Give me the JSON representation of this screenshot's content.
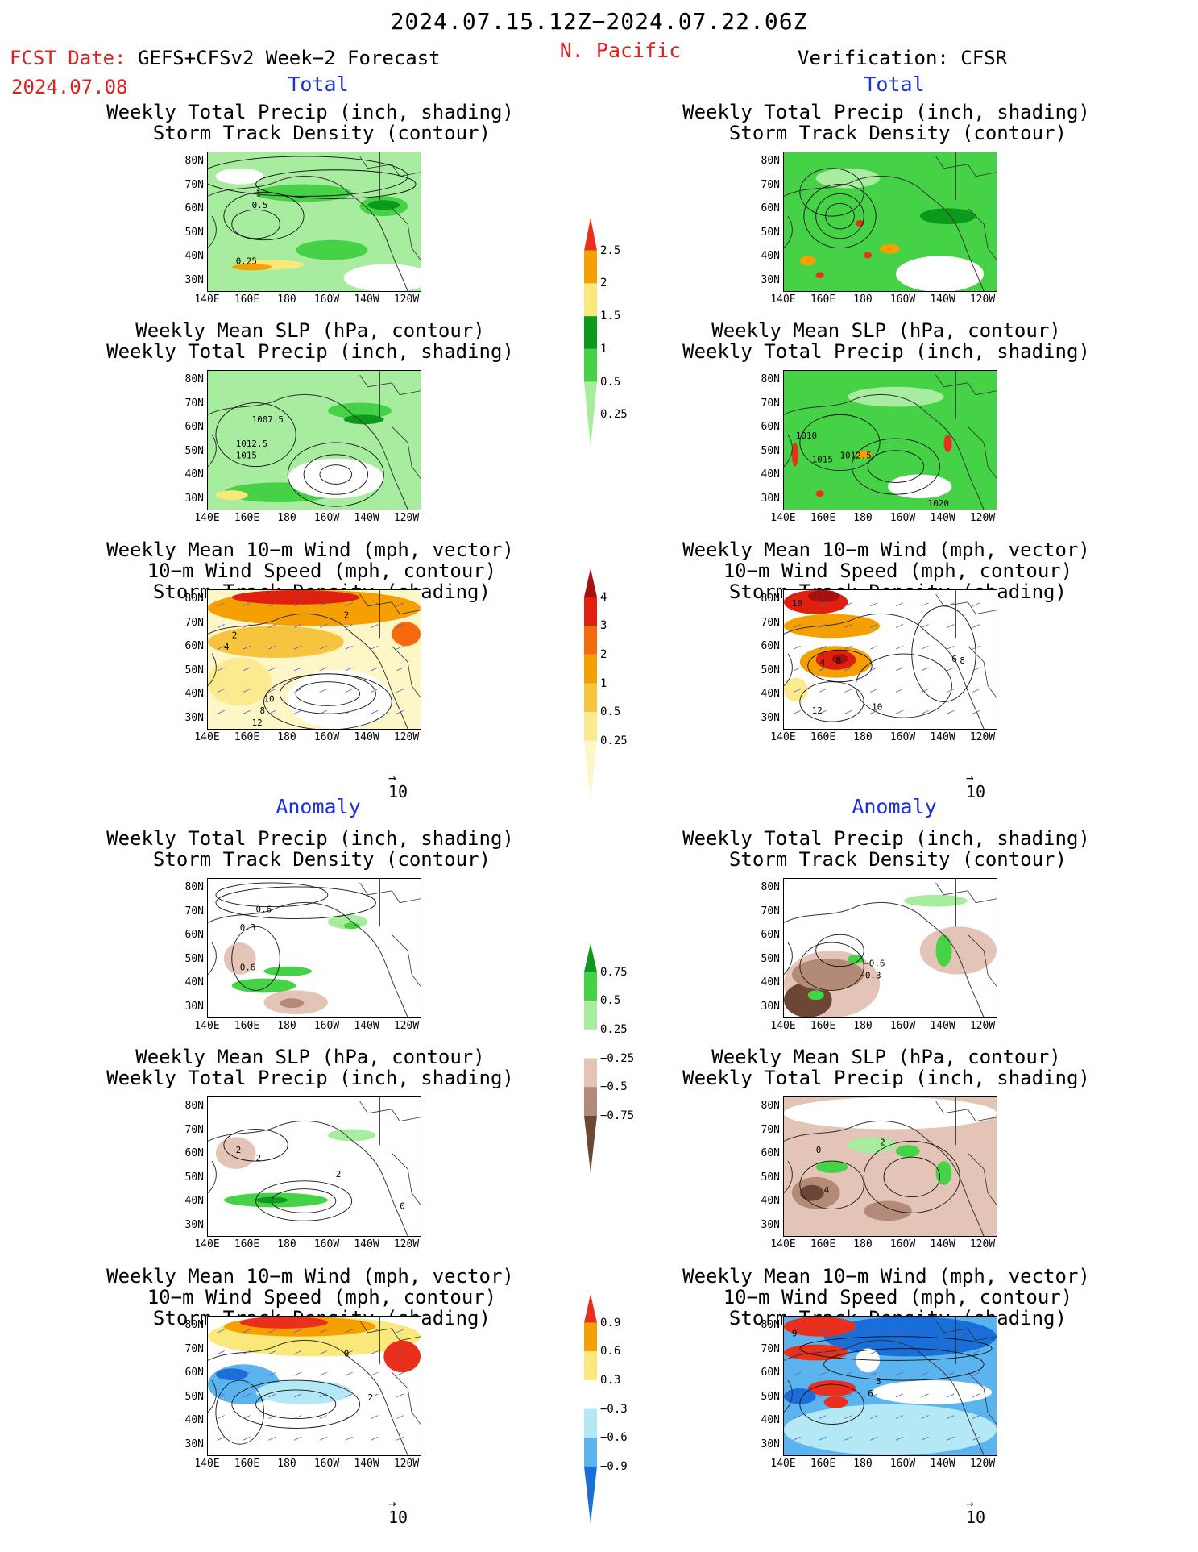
{
  "header": {
    "valid_period": "2024.07.15.12Z−2024.07.22.06Z",
    "region": "N. Pacific",
    "fcst_prefix": "FCST Date: ",
    "fcst_model": "GEFS+CFSv2 Week−2 Forecast",
    "fcst_date": "2024.07.08",
    "verification": "Verification: CFSR"
  },
  "sections": {
    "total": "Total",
    "anomaly": "Anomaly"
  },
  "captions": {
    "precip_storm": "Weekly Total Precip (inch, shading)\n  Storm Track Density (contour)",
    "slp_precip": "Weekly Mean SLP (hPa, contour)\nWeekly Total Precip (inch, shading)",
    "wind_storm": "Weekly Mean 10−m Wind (mph, vector)\n  10−m Wind Speed (mph, contour)\n  Storm Track Density (shading)"
  },
  "axes": {
    "lat": [
      "80N",
      "70N",
      "60N",
      "50N",
      "40N",
      "30N"
    ],
    "lon": [
      "140E",
      "160E",
      "180",
      "160W",
      "140W",
      "120W"
    ]
  },
  "vector_ref": "10",
  "colorbars": {
    "precip_total": {
      "labels": [
        "2.5",
        "2",
        "1.5",
        "1",
        "0.5",
        "0.25"
      ],
      "colors": [
        "#e8301c",
        "#f5a000",
        "#fbe87a",
        "#0c9a1c",
        "#46d246",
        "#a8eca0"
      ]
    },
    "storm_total": {
      "labels": [
        "4",
        "3",
        "2",
        "1",
        "0.5",
        "0.25"
      ],
      "colors": [
        "#a51111",
        "#e0200e",
        "#f56a0c",
        "#f5a000",
        "#f7c440",
        "#fbeb8e",
        "#fdf7c8"
      ]
    },
    "precip_anom": {
      "labels": [
        "0.75",
        "0.5",
        "0.25",
        "−0.25",
        "−0.5",
        "−0.75"
      ],
      "colors": [
        "#0c9a1c",
        "#46d246",
        "#a8eca0",
        "#ffffff",
        "#e3c4b6",
        "#b38a78",
        "#6e4636"
      ]
    },
    "storm_anom": {
      "labels": [
        "0.9",
        "0.6",
        "0.3",
        "−0.3",
        "−0.6",
        "−0.9"
      ],
      "colors": [
        "#e8301c",
        "#f5a000",
        "#fbe87a",
        "#ffffff",
        "#b4e8f4",
        "#5cb4ee",
        "#1a6ed8"
      ]
    }
  },
  "panel_labels": {
    "fc_storm_total": [
      "1",
      "0.5",
      "0.25"
    ],
    "fc_slp_total": [
      "1007.5",
      "1012.5",
      "1015"
    ],
    "vf_slp_total": [
      "1010",
      "1015",
      "1012.5",
      "1020"
    ],
    "fc_wind_total": [
      "2",
      "2",
      "4",
      "10",
      "8",
      "12"
    ],
    "vf_wind_total": [
      "10",
      "4",
      "8",
      "6",
      "8",
      "12",
      "10"
    ],
    "fc_storm_anom": [
      "0.6",
      "0.3",
      "0.6"
    ],
    "vf_storm_anom": [
      "−0.6",
      "−0.3"
    ],
    "fc_slp_anom": [
      "2",
      "2",
      "2",
      "0"
    ],
    "vf_slp_anom": [
      "4",
      "0",
      "2"
    ],
    "fc_wind_anom": [
      "0",
      "2"
    ],
    "vf_wind_anom": [
      "9",
      "3",
      "6"
    ]
  }
}
